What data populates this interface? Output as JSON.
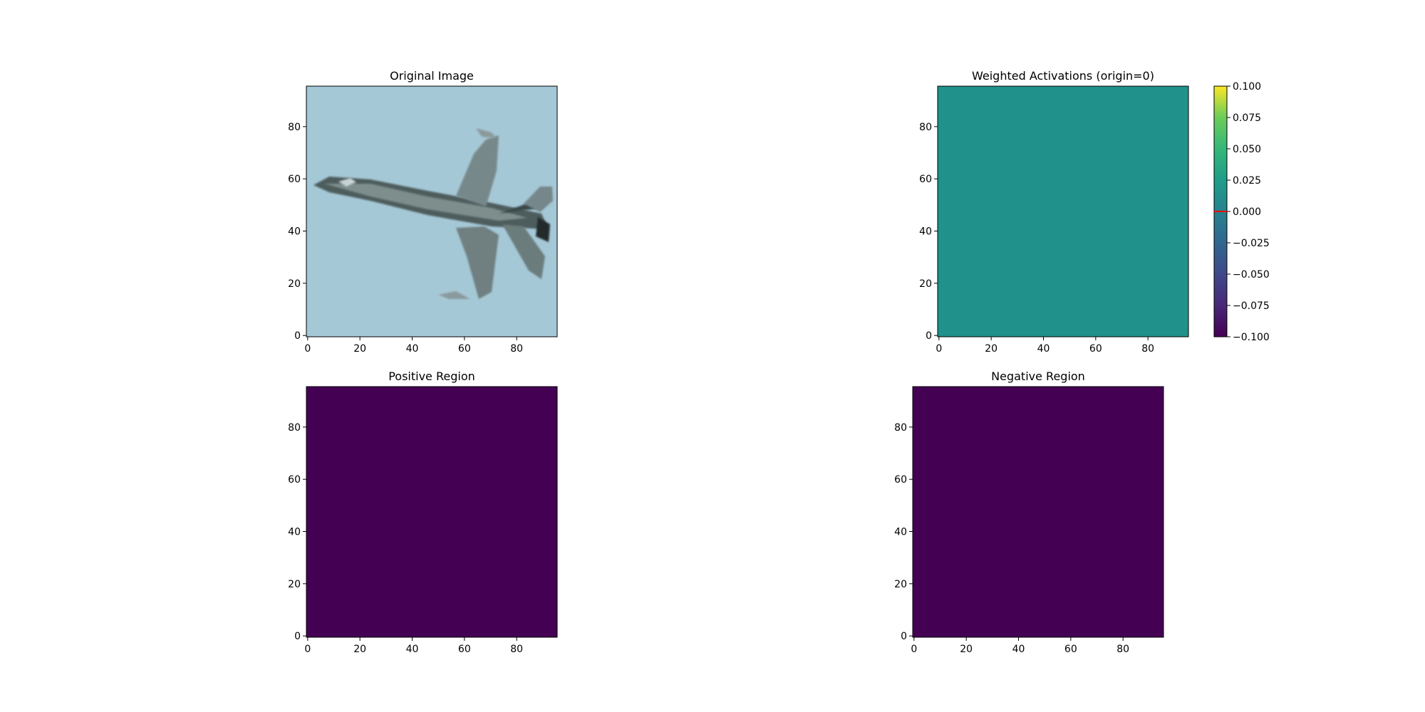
{
  "chart_data": [
    {
      "type": "image",
      "title": "Original Image",
      "content": "airplane-photo",
      "background_color": "#a5c8d7",
      "xticks": [
        0,
        20,
        40,
        60,
        80
      ],
      "yticks": [
        0,
        20,
        40,
        60,
        80
      ],
      "xlim": [
        -0.5,
        95.5
      ],
      "ylim": [
        95.5,
        -0.5
      ]
    },
    {
      "type": "heatmap",
      "title": "Weighted Activations (origin=0)",
      "fill_value": 0.0,
      "fill_color": "#21918c",
      "xticks": [
        0,
        20,
        40,
        60,
        80
      ],
      "yticks": [
        0,
        20,
        40,
        60,
        80
      ],
      "xlim": [
        -0.5,
        95.5
      ],
      "ylim": [
        95.5,
        -0.5
      ],
      "colorbar": {
        "colormap": "viridis",
        "range": [
          -0.1,
          0.1
        ],
        "ticks": [
          0.1,
          0.075,
          0.05,
          0.025,
          0.0,
          -0.025,
          -0.05,
          -0.075,
          -0.1
        ],
        "tick_labels": [
          "0.100",
          "0.075",
          "0.050",
          "0.025",
          "0.000",
          "−0.025",
          "−0.050",
          "−0.075",
          "−0.100"
        ],
        "marker_value": 0.0,
        "marker_color": "#ff0000"
      }
    },
    {
      "type": "heatmap",
      "title": "Positive Region",
      "fill_value": 0,
      "fill_color": "#440154",
      "xticks": [
        0,
        20,
        40,
        60,
        80
      ],
      "yticks": [
        0,
        20,
        40,
        60,
        80
      ],
      "xlim": [
        -0.5,
        95.5
      ],
      "ylim": [
        95.5,
        -0.5
      ]
    },
    {
      "type": "heatmap",
      "title": "Negative Region",
      "fill_value": 0,
      "fill_color": "#440154",
      "xticks": [
        0,
        20,
        40,
        60,
        80
      ],
      "yticks": [
        0,
        20,
        40,
        60,
        80
      ],
      "xlim": [
        -0.5,
        95.5
      ],
      "ylim": [
        95.5,
        -0.5
      ]
    }
  ]
}
